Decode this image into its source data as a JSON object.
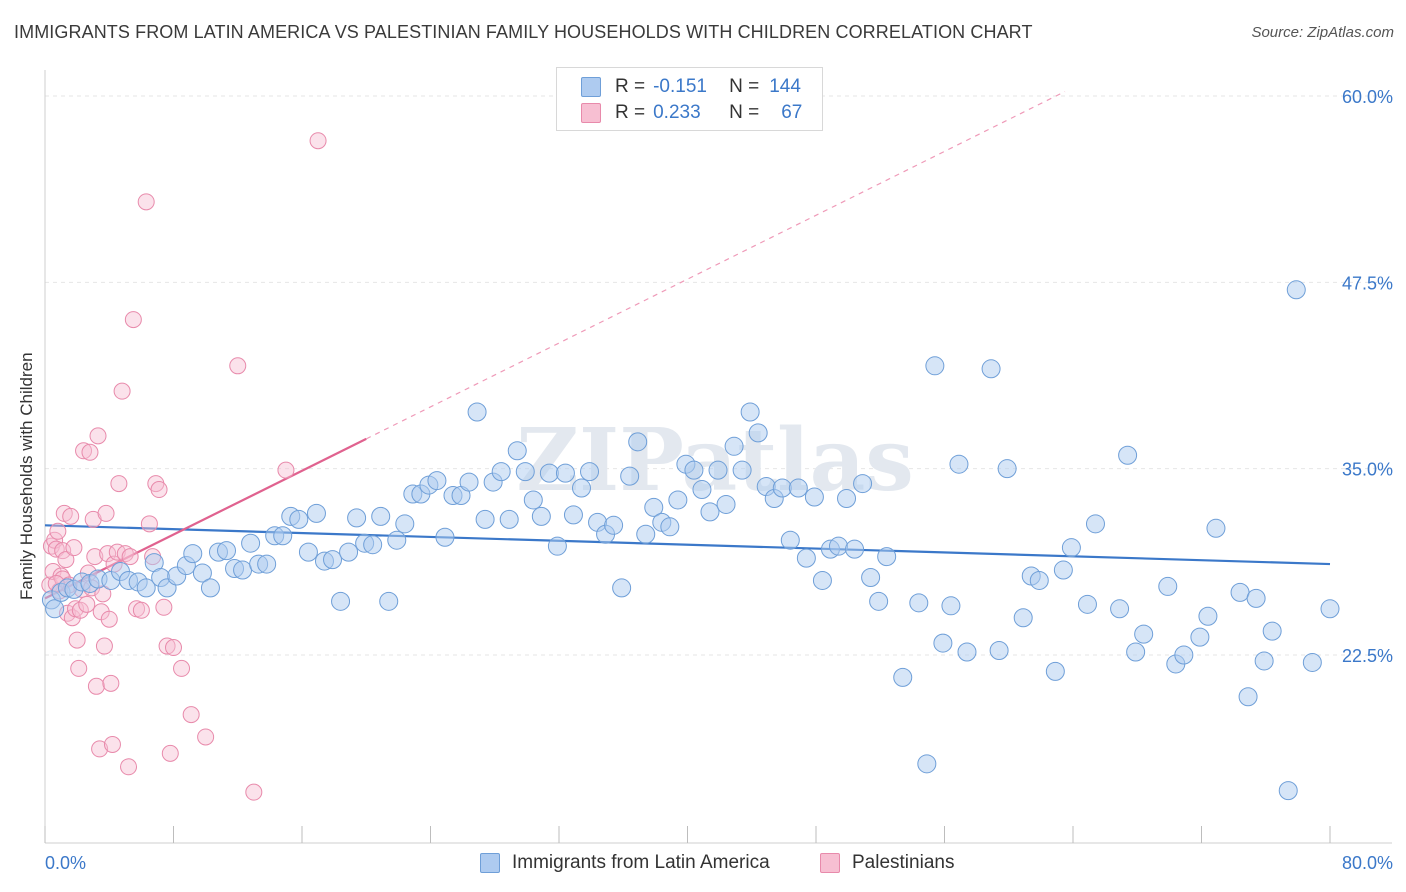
{
  "header": {
    "title": "IMMIGRANTS FROM LATIN AMERICA VS PALESTINIAN FAMILY HOUSEHOLDS WITH CHILDREN CORRELATION CHART",
    "source": "Source: ZipAtlas.com"
  },
  "legend": {
    "rows": [
      {
        "r_label": "R =",
        "r_value": "-0.151",
        "n_label": "N =",
        "n_value": "144",
        "color": "#aecbf0"
      },
      {
        "r_label": "R =",
        "r_value": "0.233",
        "n_label": "N =",
        "n_value": "67",
        "color": "#f7bfd2"
      }
    ],
    "bottom": [
      {
        "label": "Immigrants from Latin America",
        "color": "#aecbf0"
      },
      {
        "label": "Palestinians",
        "color": "#f7bfd2"
      }
    ]
  },
  "watermark": "ZIPatlas",
  "colors": {
    "blue": "#3b78c9",
    "blue_fill": "#aecbf0",
    "pink": "#e0628f",
    "pink_fill": "#f7bfd2",
    "grid": "#e6e6e6"
  },
  "chart_data": {
    "type": "scatter",
    "title": "IMMIGRANTS FROM LATIN AMERICA VS PALESTINIAN FAMILY HOUSEHOLDS WITH CHILDREN CORRELATION CHART",
    "xlabel": "",
    "ylabel": "Family Households with Children",
    "xlim": [
      0,
      80
    ],
    "ylim": [
      11.5,
      62
    ],
    "x_tick_labels": [
      "0.0%",
      "80.0%"
    ],
    "y_ticks": [
      22.5,
      35.0,
      47.5,
      60.0
    ],
    "y_tick_labels": [
      "22.5%",
      "35.0%",
      "47.5%",
      "60.0%"
    ],
    "grid": "horizontal dashed",
    "series": [
      {
        "name": "Immigrants from Latin America",
        "color": "#3b78c9",
        "trend": {
          "x": [
            0,
            80
          ],
          "y": [
            31.2,
            28.6
          ]
        },
        "points": [
          [
            0.4,
            26.2
          ],
          [
            0.6,
            25.6
          ],
          [
            1.0,
            26.7
          ],
          [
            1.4,
            27.0
          ],
          [
            1.8,
            26.9
          ],
          [
            2.3,
            27.4
          ],
          [
            2.8,
            27.3
          ],
          [
            3.3,
            27.6
          ],
          [
            4.1,
            27.5
          ],
          [
            4.7,
            28.1
          ],
          [
            5.2,
            27.5
          ],
          [
            5.8,
            27.4
          ],
          [
            6.3,
            27.0
          ],
          [
            6.8,
            28.7
          ],
          [
            7.2,
            27.7
          ],
          [
            7.6,
            27.0
          ],
          [
            8.2,
            27.8
          ],
          [
            8.8,
            28.5
          ],
          [
            9.2,
            29.3
          ],
          [
            9.8,
            28.0
          ],
          [
            10.3,
            27.0
          ],
          [
            10.8,
            29.4
          ],
          [
            11.3,
            29.5
          ],
          [
            11.8,
            28.3
          ],
          [
            12.3,
            28.2
          ],
          [
            12.8,
            30.0
          ],
          [
            13.3,
            28.6
          ],
          [
            13.8,
            28.6
          ],
          [
            14.3,
            30.5
          ],
          [
            14.8,
            30.5
          ],
          [
            15.3,
            31.8
          ],
          [
            15.8,
            31.6
          ],
          [
            16.4,
            29.4
          ],
          [
            16.9,
            32.0
          ],
          [
            17.4,
            28.8
          ],
          [
            17.9,
            28.9
          ],
          [
            18.4,
            26.1
          ],
          [
            18.9,
            29.4
          ],
          [
            19.4,
            31.7
          ],
          [
            19.9,
            30.0
          ],
          [
            20.4,
            29.9
          ],
          [
            20.9,
            31.8
          ],
          [
            21.4,
            26.1
          ],
          [
            21.9,
            30.2
          ],
          [
            22.4,
            31.3
          ],
          [
            22.9,
            33.3
          ],
          [
            23.4,
            33.3
          ],
          [
            23.9,
            33.9
          ],
          [
            24.4,
            34.2
          ],
          [
            24.9,
            30.4
          ],
          [
            25.4,
            33.2
          ],
          [
            25.9,
            33.2
          ],
          [
            26.4,
            34.1
          ],
          [
            26.9,
            38.8
          ],
          [
            27.4,
            31.6
          ],
          [
            27.9,
            34.1
          ],
          [
            28.4,
            34.8
          ],
          [
            28.9,
            31.6
          ],
          [
            29.4,
            36.2
          ],
          [
            29.9,
            34.8
          ],
          [
            30.4,
            32.9
          ],
          [
            30.9,
            31.8
          ],
          [
            31.4,
            34.7
          ],
          [
            31.9,
            29.8
          ],
          [
            32.4,
            34.7
          ],
          [
            32.9,
            31.9
          ],
          [
            33.4,
            33.7
          ],
          [
            33.9,
            34.8
          ],
          [
            34.4,
            31.4
          ],
          [
            34.9,
            30.6
          ],
          [
            35.4,
            31.2
          ],
          [
            35.9,
            27.0
          ],
          [
            36.4,
            34.5
          ],
          [
            36.9,
            36.8
          ],
          [
            37.4,
            30.6
          ],
          [
            37.9,
            32.4
          ],
          [
            38.4,
            31.4
          ],
          [
            38.9,
            31.1
          ],
          [
            39.4,
            32.9
          ],
          [
            39.9,
            35.3
          ],
          [
            40.4,
            34.9
          ],
          [
            40.9,
            33.6
          ],
          [
            41.4,
            32.1
          ],
          [
            41.9,
            34.9
          ],
          [
            42.4,
            32.6
          ],
          [
            42.9,
            36.5
          ],
          [
            43.4,
            34.9
          ],
          [
            43.9,
            38.8
          ],
          [
            44.4,
            37.4
          ],
          [
            44.9,
            33.8
          ],
          [
            45.4,
            33.0
          ],
          [
            45.9,
            33.7
          ],
          [
            46.4,
            30.2
          ],
          [
            46.9,
            33.7
          ],
          [
            47.4,
            29.0
          ],
          [
            47.9,
            33.1
          ],
          [
            48.4,
            27.5
          ],
          [
            48.9,
            29.6
          ],
          [
            49.4,
            29.8
          ],
          [
            49.9,
            33.0
          ],
          [
            50.4,
            29.6
          ],
          [
            50.9,
            34.0
          ],
          [
            51.4,
            27.7
          ],
          [
            51.9,
            26.1
          ],
          [
            52.4,
            29.1
          ],
          [
            53.4,
            21.0
          ],
          [
            54.4,
            26.0
          ],
          [
            54.9,
            15.2
          ],
          [
            55.4,
            41.9
          ],
          [
            55.9,
            23.3
          ],
          [
            56.4,
            25.8
          ],
          [
            56.9,
            35.3
          ],
          [
            57.4,
            22.7
          ],
          [
            58.9,
            41.7
          ],
          [
            59.4,
            22.8
          ],
          [
            59.9,
            35.0
          ],
          [
            60.9,
            25.0
          ],
          [
            61.4,
            27.8
          ],
          [
            61.9,
            27.5
          ],
          [
            62.9,
            21.4
          ],
          [
            63.4,
            28.2
          ],
          [
            63.9,
            29.7
          ],
          [
            64.9,
            25.9
          ],
          [
            65.4,
            31.3
          ],
          [
            66.9,
            25.6
          ],
          [
            67.4,
            35.9
          ],
          [
            67.9,
            22.7
          ],
          [
            68.4,
            23.9
          ],
          [
            69.9,
            27.1
          ],
          [
            70.4,
            21.9
          ],
          [
            70.9,
            22.5
          ],
          [
            71.9,
            23.7
          ],
          [
            72.4,
            25.1
          ],
          [
            72.9,
            31.0
          ],
          [
            74.4,
            26.7
          ],
          [
            74.9,
            19.7
          ],
          [
            75.4,
            26.3
          ],
          [
            75.9,
            22.1
          ],
          [
            76.4,
            24.1
          ],
          [
            77.4,
            13.4
          ],
          [
            77.9,
            47.0
          ],
          [
            78.9,
            22.0
          ],
          [
            80.0,
            25.6
          ]
        ]
      },
      {
        "name": "Palestinians",
        "color": "#e0628f",
        "trend": {
          "x": [
            0,
            20
          ],
          "y": [
            26.3,
            37.0
          ]
        },
        "trend_ext": {
          "x": [
            20,
            63.5
          ],
          "y": [
            37.0,
            60.3
          ]
        },
        "points": [
          [
            0.3,
            27.2
          ],
          [
            0.4,
            29.8
          ],
          [
            0.5,
            28.1
          ],
          [
            0.6,
            30.2
          ],
          [
            0.7,
            29.6
          ],
          [
            0.8,
            30.8
          ],
          [
            0.9,
            26.8
          ],
          [
            1.0,
            27.8
          ],
          [
            1.1,
            29.5
          ],
          [
            1.1,
            27.6
          ],
          [
            1.2,
            32.0
          ],
          [
            1.3,
            28.9
          ],
          [
            1.4,
            25.3
          ],
          [
            1.5,
            27.2
          ],
          [
            1.6,
            31.8
          ],
          [
            1.7,
            25.0
          ],
          [
            1.8,
            29.7
          ],
          [
            1.9,
            25.6
          ],
          [
            2.0,
            23.5
          ],
          [
            2.1,
            21.6
          ],
          [
            2.2,
            25.5
          ],
          [
            2.3,
            26.9
          ],
          [
            2.4,
            36.2
          ],
          [
            2.6,
            25.9
          ],
          [
            2.7,
            28.0
          ],
          [
            2.8,
            36.1
          ],
          [
            2.9,
            27.0
          ],
          [
            3.0,
            31.6
          ],
          [
            3.1,
            29.1
          ],
          [
            3.2,
            20.4
          ],
          [
            3.3,
            37.2
          ],
          [
            3.4,
            16.2
          ],
          [
            3.5,
            25.4
          ],
          [
            3.6,
            26.6
          ],
          [
            3.7,
            23.1
          ],
          [
            3.8,
            32.0
          ],
          [
            3.9,
            29.3
          ],
          [
            4.0,
            24.9
          ],
          [
            4.1,
            20.6
          ],
          [
            4.2,
            16.5
          ],
          [
            4.3,
            28.6
          ],
          [
            4.5,
            29.4
          ],
          [
            4.6,
            34.0
          ],
          [
            4.8,
            40.2
          ],
          [
            5.0,
            29.3
          ],
          [
            5.2,
            15.0
          ],
          [
            5.3,
            29.1
          ],
          [
            5.5,
            45.0
          ],
          [
            5.7,
            25.6
          ],
          [
            6.0,
            25.5
          ],
          [
            6.3,
            52.9
          ],
          [
            6.5,
            31.3
          ],
          [
            6.7,
            29.1
          ],
          [
            6.9,
            34.0
          ],
          [
            7.1,
            33.6
          ],
          [
            7.4,
            25.7
          ],
          [
            7.6,
            23.1
          ],
          [
            7.8,
            15.9
          ],
          [
            8.0,
            23.0
          ],
          [
            8.5,
            21.6
          ],
          [
            9.1,
            18.5
          ],
          [
            10.0,
            17.0
          ],
          [
            12.0,
            41.9
          ],
          [
            13.0,
            13.3
          ],
          [
            15.0,
            34.9
          ],
          [
            17.0,
            57.0
          ],
          [
            0.7,
            27.3
          ]
        ]
      }
    ]
  }
}
